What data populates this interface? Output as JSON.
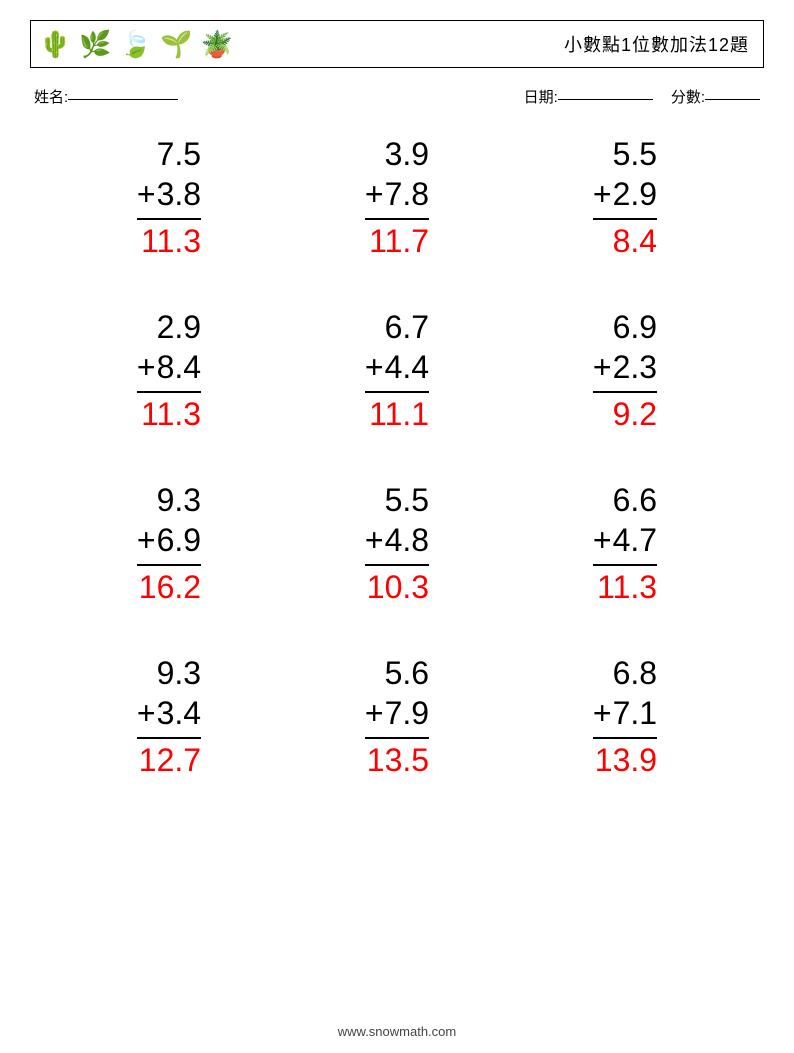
{
  "header": {
    "title": "小數點1位數加法12題",
    "icons": [
      "🌵",
      "🌿",
      "🍃",
      "🌱",
      "🪴"
    ]
  },
  "info": {
    "name_label": "姓名:",
    "date_label": "日期:",
    "score_label": "分數:"
  },
  "style": {
    "problem_fontsize": 32,
    "answer_color": "#ff0000",
    "text_color": "#000000",
    "border_color": "#000000",
    "background": "#ffffff",
    "columns": 3,
    "rows": 4
  },
  "problems": [
    {
      "a": "7.5",
      "op": "+",
      "b": "3.8",
      "ans": "11.3"
    },
    {
      "a": "3.9",
      "op": "+",
      "b": "7.8",
      "ans": "11.7"
    },
    {
      "a": "5.5",
      "op": "+",
      "b": "2.9",
      "ans": "8.4"
    },
    {
      "a": "2.9",
      "op": "+",
      "b": "8.4",
      "ans": "11.3"
    },
    {
      "a": "6.7",
      "op": "+",
      "b": "4.4",
      "ans": "11.1"
    },
    {
      "a": "6.9",
      "op": "+",
      "b": "2.3",
      "ans": "9.2"
    },
    {
      "a": "9.3",
      "op": "+",
      "b": "6.9",
      "ans": "16.2"
    },
    {
      "a": "5.5",
      "op": "+",
      "b": "4.8",
      "ans": "10.3"
    },
    {
      "a": "6.6",
      "op": "+",
      "b": "4.7",
      "ans": "11.3"
    },
    {
      "a": "9.3",
      "op": "+",
      "b": "3.4",
      "ans": "12.7"
    },
    {
      "a": "5.6",
      "op": "+",
      "b": "7.9",
      "ans": "13.5"
    },
    {
      "a": "6.8",
      "op": "+",
      "b": "7.1",
      "ans": "13.9"
    }
  ],
  "footer": {
    "url": "www.snowmath.com"
  }
}
